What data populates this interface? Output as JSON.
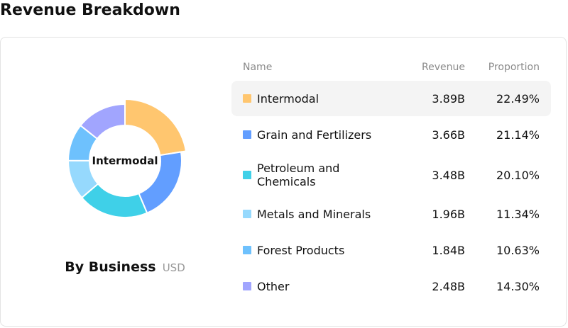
{
  "page_title": "Revenue Breakdown",
  "chart": {
    "caption_title": "By Business",
    "caption_unit": "USD",
    "center_label": "Intermodal"
  },
  "table": {
    "headers": {
      "name": "Name",
      "revenue": "Revenue",
      "proportion": "Proportion"
    },
    "active_row": 0
  },
  "chart_data": {
    "type": "pie",
    "style": "donut",
    "title": "By Business",
    "unit": "USD",
    "legend_position": "right",
    "slices": [
      {
        "name": "Intermodal",
        "revenue": "3.89B",
        "value": 22.49,
        "proportion": "22.49%",
        "color": "#FFC66F"
      },
      {
        "name": "Grain and Fertilizers",
        "revenue": "3.66B",
        "value": 21.14,
        "proportion": "21.14%",
        "color": "#629EFF"
      },
      {
        "name": "Petroleum and Chemicals",
        "revenue": "3.48B",
        "value": 20.1,
        "proportion": "20.10%",
        "color": "#3FD0E8"
      },
      {
        "name": "Metals and Minerals",
        "revenue": "1.96B",
        "value": 11.34,
        "proportion": "11.34%",
        "color": "#96D9FD"
      },
      {
        "name": "Forest Products",
        "revenue": "1.84B",
        "value": 10.63,
        "proportion": "10.63%",
        "color": "#6EC1FD"
      },
      {
        "name": "Other",
        "revenue": "2.48B",
        "value": 14.3,
        "proportion": "14.30%",
        "color": "#A1A5FE"
      }
    ]
  }
}
